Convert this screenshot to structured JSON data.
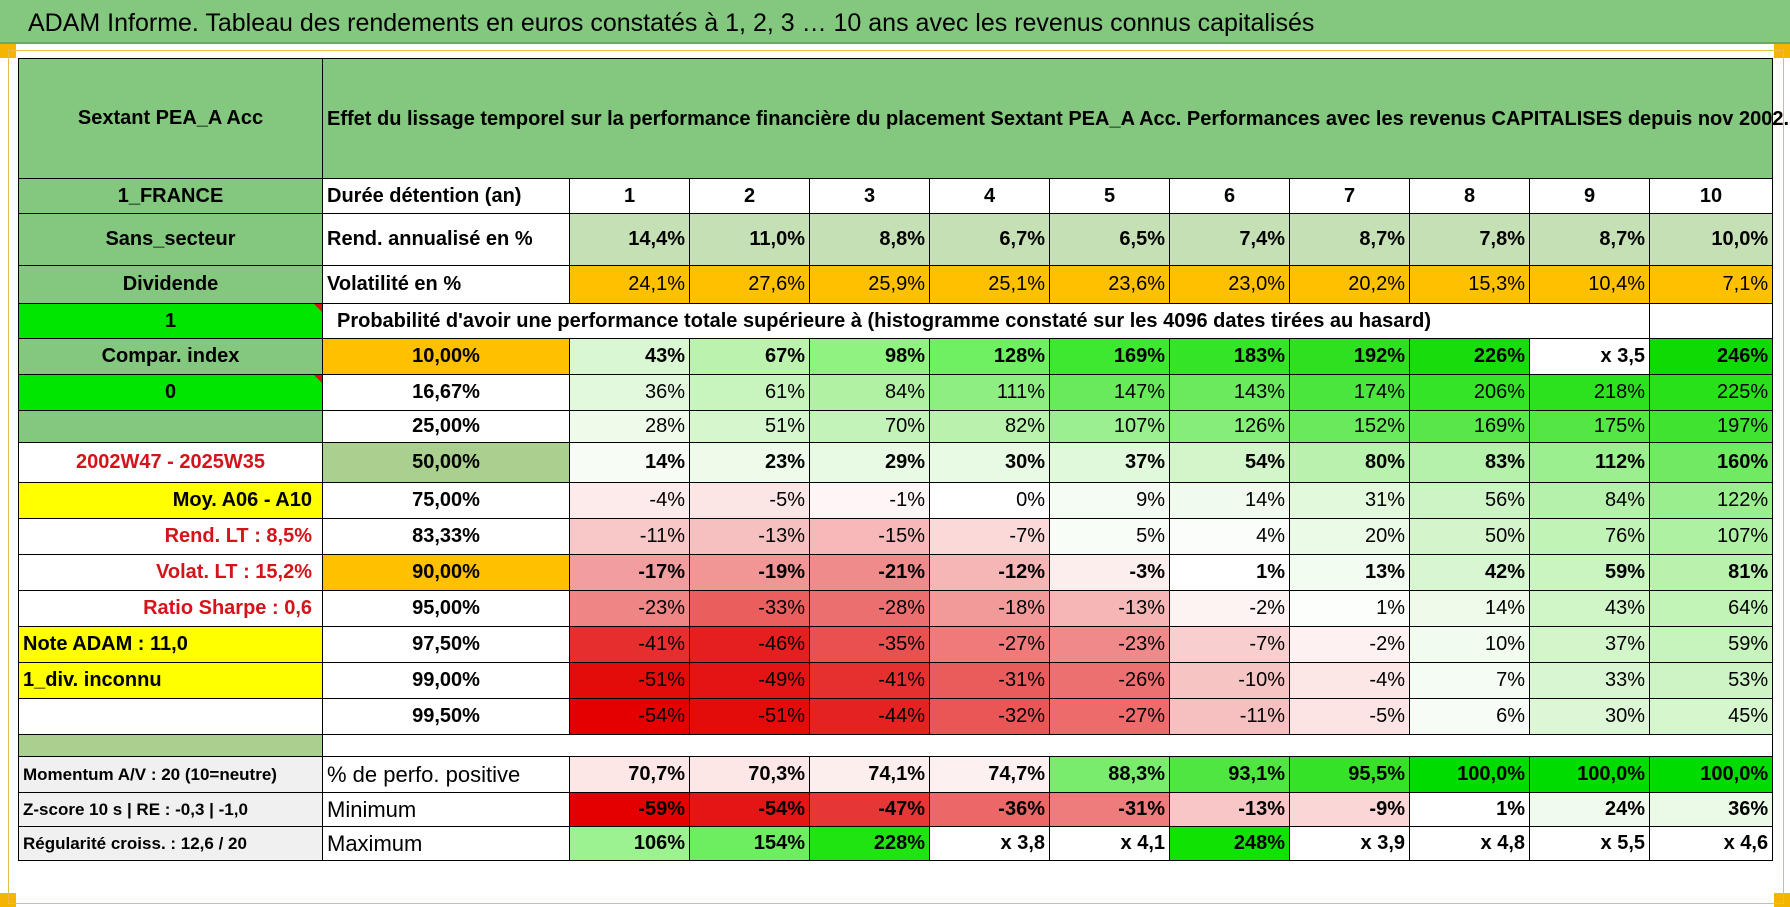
{
  "title": "ADAM Informe. Tableau des rendements en euros constatés à 1, 2, 3 … 10 ans avec les revenus connus capitalisés",
  "fund_name": "Sextant PEA_A Acc",
  "description": "Effet du lissage temporel sur la performance financière du placement Sextant PEA_A Acc. Performances avec les revenus CAPITALISES depuis nov 2002.",
  "side": {
    "country": "1_FRANCE",
    "sector": "Sans_secteur",
    "dividend": "Dividende",
    "input1": "1",
    "compar_index": "Compar. index",
    "input0": "0",
    "period": "2002W47 - 2025W35",
    "moy": "Moy. A06 - A10",
    "rend_lt": "Rend. LT :   8,5%",
    "volat_lt": "Volat. LT :   15,2%",
    "sharpe": "Ratio Sharpe :    0,6",
    "note": "Note ADAM : 11,0",
    "div": "1_div. inconnu"
  },
  "row_labels": {
    "duration": "Durée détention (an)",
    "rend": "Rend. annualisé en %",
    "vol": "Volatilité en %",
    "prob": "Probabilité d'avoir une performance totale supérieure à (histogramme constaté sur les 4096 dates tirées au hasard)"
  },
  "years": [
    "1",
    "2",
    "3",
    "4",
    "5",
    "6",
    "7",
    "8",
    "9",
    "10"
  ],
  "rend": [
    "14,4%",
    "11,0%",
    "8,8%",
    "6,7%",
    "6,5%",
    "7,4%",
    "8,7%",
    "7,8%",
    "8,7%",
    "10,0%"
  ],
  "vol": [
    "24,1%",
    "27,6%",
    "25,9%",
    "25,1%",
    "23,6%",
    "23,0%",
    "20,2%",
    "15,3%",
    "10,4%",
    "7,1%"
  ],
  "prob_rows": [
    {
      "level": "10,00%",
      "values": [
        "43%",
        "67%",
        "98%",
        "128%",
        "169%",
        "183%",
        "192%",
        "226%",
        "x 3,5",
        "246%"
      ]
    },
    {
      "level": "16,67%",
      "values": [
        "36%",
        "61%",
        "84%",
        "111%",
        "147%",
        "143%",
        "174%",
        "206%",
        "218%",
        "225%"
      ]
    },
    {
      "level": "25,00%",
      "values": [
        "28%",
        "51%",
        "70%",
        "82%",
        "107%",
        "126%",
        "152%",
        "169%",
        "175%",
        "197%"
      ]
    },
    {
      "level": "50,00%",
      "values": [
        "14%",
        "23%",
        "29%",
        "30%",
        "37%",
        "54%",
        "80%",
        "83%",
        "112%",
        "160%"
      ]
    },
    {
      "level": "75,00%",
      "values": [
        "-4%",
        "-5%",
        "-1%",
        "0%",
        "9%",
        "14%",
        "31%",
        "56%",
        "84%",
        "122%"
      ]
    },
    {
      "level": "83,33%",
      "values": [
        "-11%",
        "-13%",
        "-15%",
        "-7%",
        "5%",
        "4%",
        "20%",
        "50%",
        "76%",
        "107%"
      ]
    },
    {
      "level": "90,00%",
      "values": [
        "-17%",
        "-19%",
        "-21%",
        "-12%",
        "-3%",
        "1%",
        "13%",
        "42%",
        "59%",
        "81%"
      ]
    },
    {
      "level": "95,00%",
      "values": [
        "-23%",
        "-33%",
        "-28%",
        "-18%",
        "-13%",
        "-2%",
        "1%",
        "14%",
        "43%",
        "64%"
      ]
    },
    {
      "level": "97,50%",
      "values": [
        "-41%",
        "-46%",
        "-35%",
        "-27%",
        "-23%",
        "-7%",
        "-2%",
        "10%",
        "37%",
        "59%"
      ]
    },
    {
      "level": "99,00%",
      "values": [
        "-51%",
        "-49%",
        "-41%",
        "-31%",
        "-26%",
        "-10%",
        "-4%",
        "7%",
        "33%",
        "53%"
      ]
    },
    {
      "level": "99,50%",
      "values": [
        "-54%",
        "-51%",
        "-44%",
        "-32%",
        "-27%",
        "-11%",
        "-5%",
        "6%",
        "30%",
        "45%"
      ]
    }
  ],
  "bottom": [
    {
      "side": "Momentum A/V : 20 (10=neutre)",
      "label": "% de perfo. positive",
      "values": [
        "70,7%",
        "70,3%",
        "74,1%",
        "74,7%",
        "88,3%",
        "93,1%",
        "95,5%",
        "100,0%",
        "100,0%",
        "100,0%"
      ]
    },
    {
      "side": "Z-score 10 s | RE : -0,3 | -1,0",
      "label": "Minimum",
      "values": [
        "-59%",
        "-54%",
        "-47%",
        "-36%",
        "-31%",
        "-13%",
        "-9%",
        "1%",
        "24%",
        "36%"
      ]
    },
    {
      "side": "Régularité croiss. : 12,6 / 20",
      "label": "Maximum",
      "values": [
        "106%",
        "154%",
        "228%",
        "x 3,8",
        "x 4,1",
        "248%",
        "x 3,9",
        "x 4,8",
        "x 5,5",
        "x 4,6"
      ]
    }
  ],
  "colors": {
    "header_green": "#84c77e",
    "rend_green": "#c5e0b4",
    "vol_orange": "#ffc000",
    "highlight_yellow": "#ffff00",
    "bright_green": "#00e600",
    "red_text": "#d4141a"
  }
}
